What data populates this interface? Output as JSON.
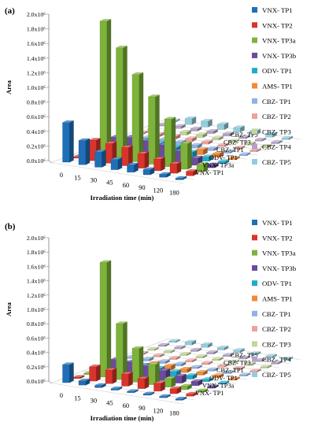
{
  "chart_data": [
    {
      "panel_label": "(a)",
      "type": "bar",
      "style": "3d-column",
      "xlabel": "Irradiation time (min)",
      "ylabel": "Area",
      "ylim": [
        0,
        2000000
      ],
      "y_ticks": [
        "0.0x10⁶",
        "0.2x10⁶",
        "0.4x10⁶",
        "0.6x10⁶",
        "0.8x10⁶",
        "1.0x10⁶",
        "1.2x10⁶",
        "1.4x10⁶",
        "1.6x10⁶",
        "1.8x10⁶",
        "2.0x10⁶"
      ],
      "categories": [
        "0",
        "15",
        "30",
        "45",
        "60",
        "90",
        "120",
        "180"
      ],
      "depth_labels": [
        "VNX- TP1",
        "VNX- TP3a",
        "ODV- TP1",
        "CBZ- TP1",
        "CBZ- TP3",
        "CBZ- TP5"
      ],
      "legend_position": "right",
      "series": [
        {
          "name": "VNX- TP1",
          "color": "#1f6fb8",
          "values": [
            540000,
            330000,
            210000,
            140000,
            100000,
            70000,
            40000,
            20000
          ]
        },
        {
          "name": "VNX- TP2",
          "color": "#d9342b",
          "values": [
            0,
            280000,
            270000,
            250000,
            200000,
            160000,
            130000,
            60000
          ]
        },
        {
          "name": "VNX- TP3a",
          "color": "#7db33a",
          "values": [
            0,
            1850000,
            1520000,
            1190000,
            920000,
            650000,
            350000,
            100000
          ]
        },
        {
          "name": "VNX- TP3b",
          "color": "#6a4b9c",
          "values": [
            0,
            210000,
            240000,
            230000,
            210000,
            160000,
            100000,
            40000
          ]
        },
        {
          "name": "ODV- TP1",
          "color": "#22aacc",
          "values": [
            0,
            130000,
            150000,
            140000,
            120000,
            90000,
            60000,
            30000
          ]
        },
        {
          "name": "AMS- TP1",
          "color": "#f08a3a",
          "values": [
            0,
            90000,
            100000,
            100000,
            90000,
            70000,
            50000,
            20000
          ]
        },
        {
          "name": "CBZ- TP1",
          "color": "#8fb4e3",
          "values": [
            0,
            40000,
            50000,
            50000,
            40000,
            30000,
            20000,
            10000
          ]
        },
        {
          "name": "CBZ- TP2",
          "color": "#eea29a",
          "values": [
            0,
            30000,
            40000,
            40000,
            30000,
            20000,
            15000,
            10000
          ]
        },
        {
          "name": "CBZ- TP3",
          "color": "#c3d69b",
          "values": [
            0,
            30000,
            40000,
            40000,
            30000,
            20000,
            15000,
            10000
          ]
        },
        {
          "name": "CBZ- TP4",
          "color": "#b3a2c7",
          "values": [
            0,
            30000,
            30000,
            30000,
            30000,
            20000,
            15000,
            10000
          ]
        },
        {
          "name": "CBZ- TP5",
          "color": "#93cddd",
          "values": [
            0,
            80000,
            80000,
            70000,
            60000,
            50000,
            40000,
            20000
          ]
        }
      ]
    },
    {
      "panel_label": "(b)",
      "type": "bar",
      "style": "3d-column",
      "xlabel": "Irradiation time (min)",
      "ylabel": "Area",
      "ylim": [
        0,
        2000000
      ],
      "y_ticks": [
        "0.0x10⁶",
        "0.2x10⁶",
        "0.4x10⁶",
        "0.6x10⁶",
        "0.8x10⁶",
        "1.0x10⁶",
        "1.2x10⁶",
        "1.4x10⁶",
        "1.6x10⁶",
        "1.8x10⁶",
        "2.0x10⁶"
      ],
      "categories": [
        "0",
        "15",
        "30",
        "45",
        "60",
        "90",
        "120",
        "180"
      ],
      "depth_labels": [
        "VNX- TP1",
        "VNX- TP3a",
        "ODV- TP1",
        "CBZ- TP1",
        "CBZ- TP3",
        "CBZ- TP5"
      ],
      "legend_position": "right",
      "series": [
        {
          "name": "VNX- TP1",
          "color": "#1f6fb8",
          "values": [
            250000,
            60000,
            30000,
            20000,
            10000,
            10000,
            5000,
            5000
          ]
        },
        {
          "name": "VNX- TP2",
          "color": "#d9342b",
          "values": [
            0,
            200000,
            190000,
            170000,
            140000,
            110000,
            70000,
            30000
          ]
        },
        {
          "name": "VNX- TP3a",
          "color": "#7db33a",
          "values": [
            0,
            1600000,
            780000,
            470000,
            280000,
            120000,
            50000,
            20000
          ]
        },
        {
          "name": "VNX- TP3b",
          "color": "#6a4b9c",
          "values": [
            0,
            190000,
            190000,
            170000,
            140000,
            100000,
            60000,
            20000
          ]
        },
        {
          "name": "ODV- TP1",
          "color": "#22aacc",
          "values": [
            0,
            90000,
            90000,
            80000,
            70000,
            50000,
            30000,
            10000
          ]
        },
        {
          "name": "AMS- TP1",
          "color": "#f08a3a",
          "values": [
            0,
            60000,
            60000,
            60000,
            50000,
            40000,
            30000,
            10000
          ]
        },
        {
          "name": "CBZ- TP1",
          "color": "#8fb4e3",
          "values": [
            0,
            30000,
            30000,
            30000,
            20000,
            20000,
            10000,
            5000
          ]
        },
        {
          "name": "CBZ- TP2",
          "color": "#eea29a",
          "values": [
            0,
            20000,
            20000,
            20000,
            20000,
            10000,
            10000,
            5000
          ]
        },
        {
          "name": "CBZ- TP3",
          "color": "#c3d69b",
          "values": [
            0,
            20000,
            20000,
            20000,
            20000,
            10000,
            10000,
            5000
          ]
        },
        {
          "name": "CBZ- TP4",
          "color": "#b3a2c7",
          "values": [
            0,
            20000,
            20000,
            20000,
            20000,
            10000,
            10000,
            5000
          ]
        },
        {
          "name": "CBZ- TP5",
          "color": "#93cddd",
          "values": [
            0,
            40000,
            40000,
            30000,
            30000,
            20000,
            20000,
            10000
          ]
        }
      ]
    }
  ]
}
